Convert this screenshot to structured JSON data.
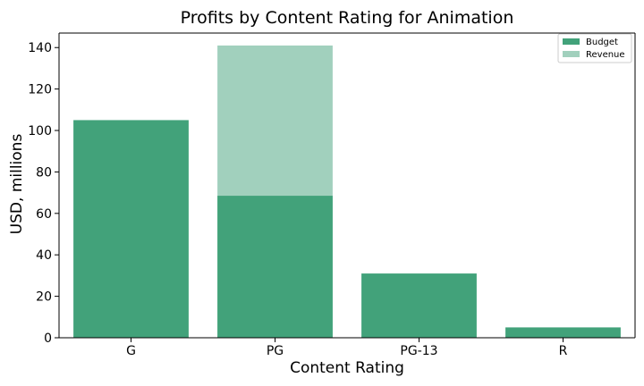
{
  "chart_data": {
    "type": "bar",
    "title": "Profits by Content Rating for Animation",
    "xlabel": "Content Rating",
    "ylabel": "USD, millions",
    "categories": [
      "G",
      "PG",
      "PG-13",
      "R"
    ],
    "series": [
      {
        "name": "Budget",
        "values": [
          105,
          68.5,
          31,
          5
        ],
        "color": "#42a27a"
      },
      {
        "name": "Revenue",
        "values": [
          0,
          141,
          0,
          0
        ],
        "color": "#a1d0bd"
      }
    ],
    "ylim": [
      0,
      147
    ],
    "yticks": [
      0,
      20,
      40,
      60,
      80,
      100,
      120,
      140
    ],
    "grid": false,
    "legend_position": "top-right"
  }
}
